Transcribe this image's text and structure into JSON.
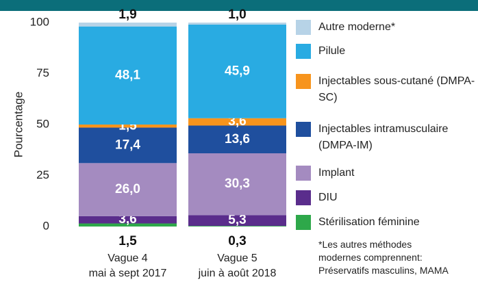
{
  "chart_data": {
    "type": "stacked-bar",
    "y_label": "Pourcentage",
    "categories": [
      [
        "Vague 4",
        "mai à sept 2017"
      ],
      [
        "Vague 5",
        "juin à août 2018"
      ]
    ],
    "ylim": [
      0,
      100
    ],
    "yticks": [
      0,
      25,
      50,
      75,
      100
    ],
    "series": [
      {
        "name": "Stérilisation féminine",
        "color": "#2ea84a",
        "values": [
          1.5,
          0.3
        ],
        "value_labels": [
          "1,5",
          "0,3"
        ]
      },
      {
        "name": "DIU",
        "color": "#5a2d8c",
        "values": [
          3.6,
          5.3
        ],
        "value_labels": [
          "3,6",
          "5,3"
        ]
      },
      {
        "name": "Implant",
        "color": "#a48bc0",
        "values": [
          26.0,
          30.3
        ],
        "value_labels": [
          "26,0",
          "30,3"
        ]
      },
      {
        "name": "Injectables intramusculaire (DMPA-IM)",
        "color": "#1f4f9e",
        "values": [
          17.4,
          13.6
        ],
        "value_labels": [
          "17,4",
          "13,6"
        ]
      },
      {
        "name": "Injectables sous-cutané (DMPA-SC)",
        "color": "#f7941d",
        "values": [
          1.5,
          3.6
        ],
        "value_labels": [
          "1,5",
          "3,6"
        ]
      },
      {
        "name": "Pilule",
        "color": "#29abe2",
        "values": [
          48.1,
          45.9
        ],
        "value_labels": [
          "48,1",
          "45,9"
        ]
      },
      {
        "name": "Autre moderne*",
        "color": "#b7d3e7",
        "values": [
          1.9,
          1.0
        ],
        "value_labels": [
          "1,9",
          "1,0"
        ]
      }
    ],
    "footnote": [
      "*Les autres méthodes",
      "modernes comprennent:",
      "Préservatifs masculins, MAMA"
    ]
  }
}
